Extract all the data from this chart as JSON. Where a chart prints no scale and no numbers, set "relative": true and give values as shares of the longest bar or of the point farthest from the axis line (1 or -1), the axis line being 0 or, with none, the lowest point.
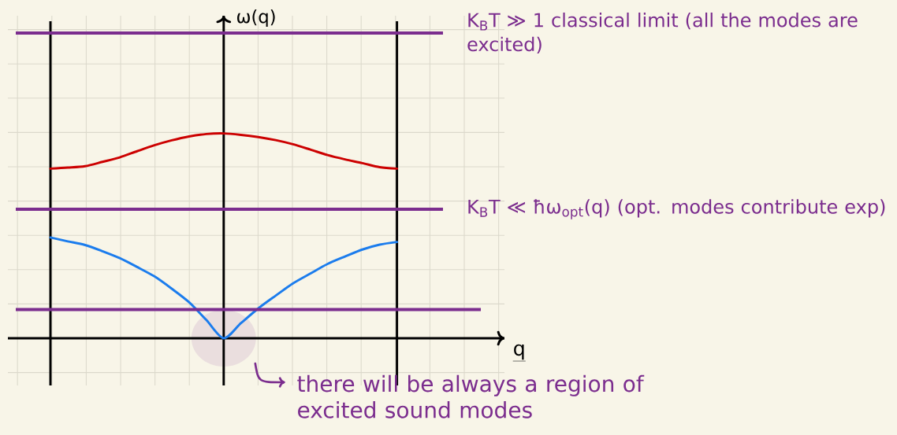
{
  "chart_data": {
    "type": "line",
    "relative": true,
    "grid": true,
    "categories": [
      null,
      null,
      null,
      null,
      null,
      null,
      null,
      null,
      null,
      null,
      null,
      null,
      null,
      null,
      null,
      null,
      null,
      null,
      null,
      null,
      null
    ],
    "series": [
      {
        "color": "#cc0000",
        "values": [
          0.828,
          0.833,
          0.84,
          0.861,
          0.883,
          0.913,
          0.942,
          0.966,
          0.985,
          0.997,
          1,
          0.993,
          0.982,
          0.967,
          0.947,
          0.921,
          0.894,
          0.873,
          0.855,
          0.835,
          0.828
        ]
      },
      {
        "color": "#1b7ced",
        "values": [
          0.492,
          0.473,
          0.455,
          0.425,
          0.391,
          0.348,
          0.302,
          0.242,
          0.176,
          0.089,
          0,
          0.074,
          0.146,
          0.208,
          0.268,
          0.316,
          0.363,
          0.399,
          0.433,
          0.457,
          0.47
        ]
      }
    ],
    "ref_lines": [
      {
        "axis": "y",
        "value": 1.49,
        "color": "#7b2d8e",
        "label": "K$_{B}$T ≫ 1 classical limit (all the modes are excited)"
      },
      {
        "axis": "y",
        "value": 0.63,
        "color": "#7b2d8e",
        "label": "K$_{B}$T ≪ ħω$_{opt}$(q) (opt. modes contribute exp)"
      },
      {
        "axis": "y",
        "value": 0.14,
        "color": "#7b2d8e"
      }
    ],
    "annotations": [
      "ω(q)",
      "q",
      "there will be always a region of excited sound modes"
    ]
  }
}
